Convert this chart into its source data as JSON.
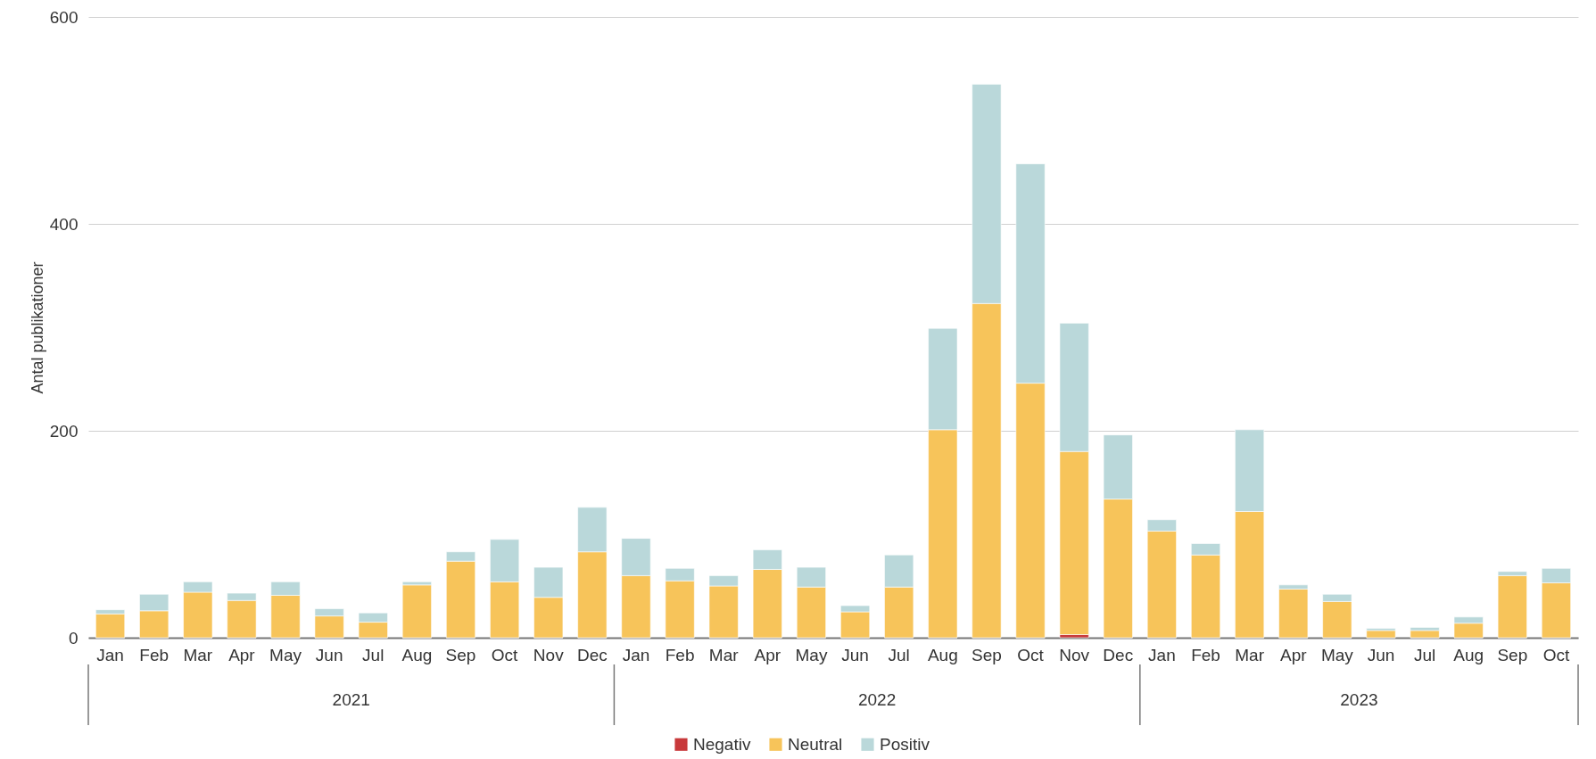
{
  "chart_data": {
    "type": "bar",
    "ylabel": "Antal publikationer",
    "categories": [
      "Jan",
      "Feb",
      "Mar",
      "Apr",
      "May",
      "Jun",
      "Jul",
      "Aug",
      "Sep",
      "Oct",
      "Nov",
      "Dec",
      "Jan",
      "Feb",
      "Mar",
      "Apr",
      "May",
      "Jun",
      "Jul",
      "Aug",
      "Sep",
      "Oct",
      "Nov",
      "Dec",
      "Jan",
      "Feb",
      "Mar",
      "Apr",
      "May",
      "Jun",
      "Jul",
      "Aug",
      "Sep",
      "Oct"
    ],
    "series": [
      {
        "name": "Negativ",
        "color": "#c8393b",
        "values": [
          0,
          0,
          0,
          0,
          0,
          0,
          0,
          0,
          0,
          0,
          0,
          0,
          0,
          0,
          0,
          0,
          0,
          0,
          0,
          0,
          0,
          0,
          3,
          0,
          0,
          0,
          0,
          0,
          0,
          0,
          0,
          0,
          0,
          0
        ]
      },
      {
        "name": "Neutral",
        "color": "#f7c45a",
        "values": [
          23,
          26,
          44,
          36,
          41,
          21,
          15,
          51,
          74,
          54,
          39,
          83,
          60,
          55,
          50,
          66,
          49,
          25,
          49,
          201,
          323,
          246,
          177,
          134,
          103,
          80,
          122,
          47,
          35,
          7,
          7,
          14,
          60,
          53
        ]
      },
      {
        "name": "Positiv",
        "color": "#bad8da",
        "values": [
          4,
          16,
          10,
          7,
          13,
          7,
          9,
          3,
          9,
          41,
          29,
          43,
          36,
          12,
          10,
          19,
          19,
          6,
          31,
          98,
          212,
          212,
          124,
          62,
          11,
          11,
          79,
          4,
          7,
          2,
          3,
          6,
          4,
          14
        ]
      }
    ],
    "stacked": true,
    "ylim": [
      0,
      600
    ],
    "yticks": [
      0,
      200,
      400,
      600
    ],
    "grid": "y",
    "legend": "bottom",
    "annotations": [
      "2021",
      "2022",
      "2023"
    ]
  }
}
